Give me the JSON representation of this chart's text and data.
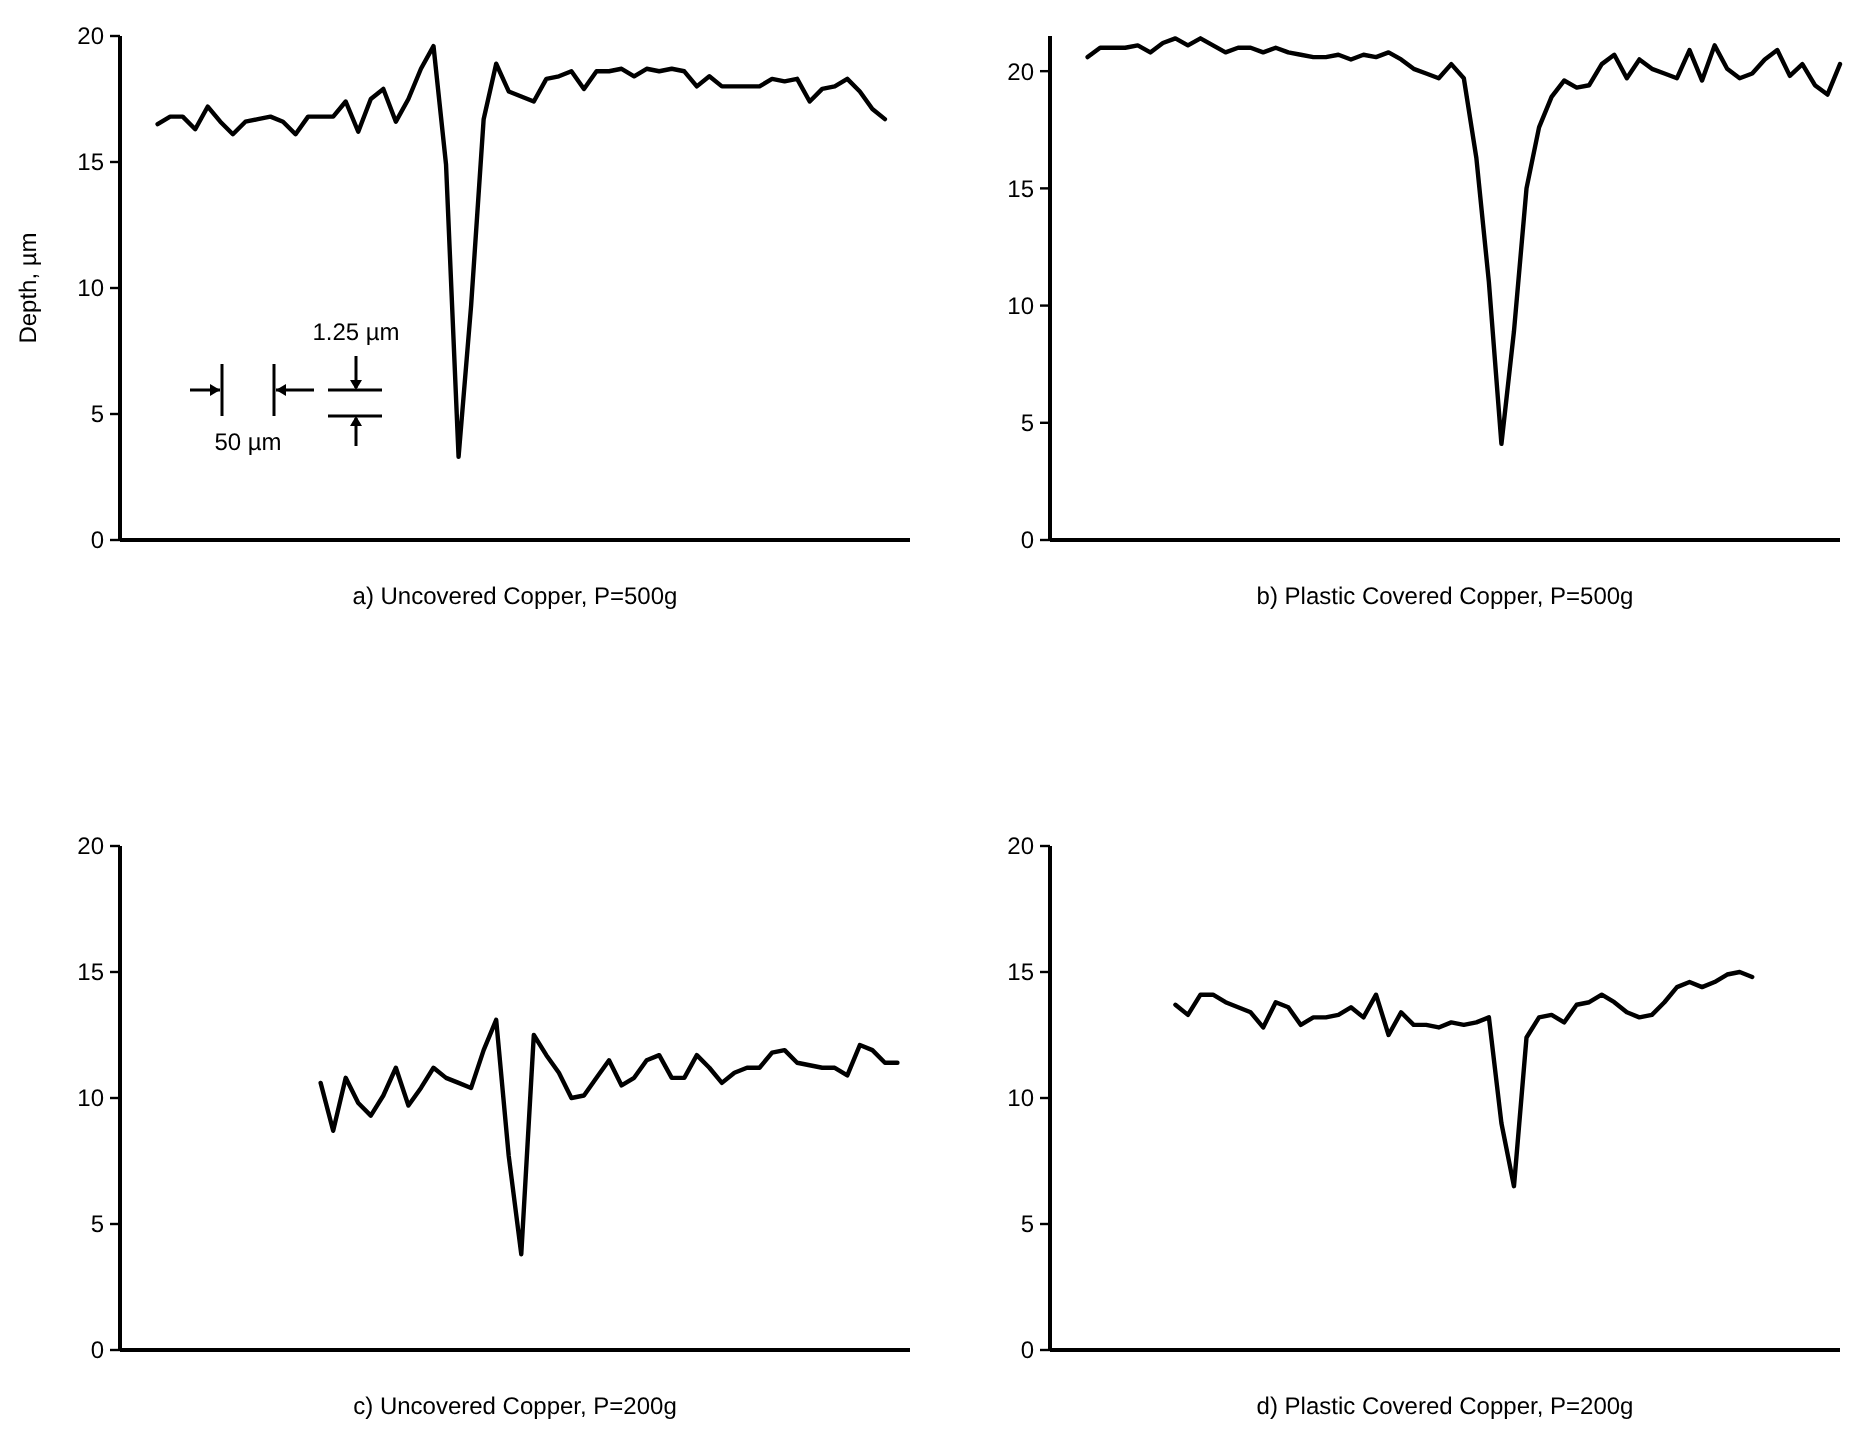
{
  "chart_data": [
    {
      "type": "line",
      "title": "a) Uncovered Copper, P=500g",
      "ylabel": "Depth, µm",
      "annotations": [
        "1.25 µm",
        "50 µm"
      ],
      "tick_labels": "y",
      "ylim": [
        0,
        20
      ],
      "yticks": [
        0,
        5,
        10,
        15,
        20
      ],
      "categories": [
        null,
        null,
        null,
        null,
        null,
        null,
        null,
        null,
        null,
        null,
        null,
        null,
        null,
        null,
        null,
        null,
        null,
        null,
        null,
        null,
        null,
        null,
        null,
        null,
        null,
        null,
        null,
        null,
        null,
        null,
        null,
        null,
        null,
        null,
        null,
        null,
        null,
        null,
        null,
        null,
        null,
        null,
        null,
        null,
        null,
        null,
        null,
        null,
        null,
        null,
        null,
        null,
        null,
        null,
        null,
        null,
        null,
        null,
        null,
        null,
        null,
        null,
        null,
        null
      ],
      "series": [
        {
          "color": "#000000",
          "values": [
            null,
            null,
            null,
            16.5,
            16.8,
            16.8,
            16.3,
            17.2,
            16.6,
            16.1,
            16.6,
            16.7,
            16.8,
            16.6,
            16.1,
            16.8,
            16.8,
            16.8,
            17.4,
            16.2,
            17.5,
            17.9,
            16.6,
            17.5,
            18.7,
            19.6,
            14.9,
            3.3,
            9.3,
            16.7,
            18.9,
            17.8,
            17.6,
            17.4,
            18.3,
            18.4,
            18.6,
            17.9,
            18.6,
            18.6,
            18.7,
            18.4,
            18.7,
            18.6,
            18.7,
            18.6,
            18.0,
            18.4,
            18.0,
            18.0,
            18.0,
            18.0,
            18.3,
            18.2,
            18.3,
            17.4,
            17.9,
            18.0,
            18.3,
            17.8,
            17.1,
            16.7,
            null,
            null
          ]
        }
      ]
    },
    {
      "type": "line",
      "title": "b) Plastic Covered Copper, P=500g",
      "tick_labels": "y",
      "ylim": [
        0,
        21.5
      ],
      "yticks": [
        0,
        5,
        10,
        15,
        20
      ],
      "categories": [
        null,
        null,
        null,
        null,
        null,
        null,
        null,
        null,
        null,
        null,
        null,
        null,
        null,
        null,
        null,
        null,
        null,
        null,
        null,
        null,
        null,
        null,
        null,
        null,
        null,
        null,
        null,
        null,
        null,
        null,
        null,
        null,
        null,
        null,
        null,
        null,
        null,
        null,
        null,
        null,
        null,
        null,
        null,
        null,
        null,
        null,
        null,
        null,
        null,
        null,
        null,
        null,
        null,
        null,
        null,
        null,
        null,
        null,
        null,
        null,
        null,
        null,
        null,
        null
      ],
      "series": [
        {
          "color": "#000000",
          "values": [
            null,
            null,
            null,
            20.6,
            21.0,
            21.0,
            21.0,
            21.1,
            20.8,
            21.2,
            21.4,
            21.1,
            21.4,
            21.1,
            20.8,
            21.0,
            21.0,
            20.8,
            21.0,
            20.8,
            20.7,
            20.6,
            20.6,
            20.7,
            20.5,
            20.7,
            20.6,
            20.8,
            20.5,
            20.1,
            19.9,
            19.7,
            20.3,
            19.7,
            16.3,
            11.0,
            4.1,
            8.9,
            15.0,
            17.6,
            18.9,
            19.6,
            19.3,
            19.4,
            20.3,
            20.7,
            19.7,
            20.5,
            20.1,
            19.9,
            19.7,
            20.9,
            19.6,
            21.1,
            20.1,
            19.7,
            19.9,
            20.5,
            20.9,
            19.8,
            20.3,
            19.4,
            19.0,
            20.3
          ]
        }
      ]
    },
    {
      "type": "line",
      "title": "c) Uncovered Copper, P=200g",
      "tick_labels": "y",
      "ylim": [
        0,
        20
      ],
      "yticks": [
        0,
        5,
        10,
        15,
        20
      ],
      "categories": [
        null,
        null,
        null,
        null,
        null,
        null,
        null,
        null,
        null,
        null,
        null,
        null,
        null,
        null,
        null,
        null,
        null,
        null,
        null,
        null,
        null,
        null,
        null,
        null,
        null,
        null,
        null,
        null,
        null,
        null,
        null,
        null,
        null,
        null,
        null,
        null,
        null,
        null,
        null,
        null,
        null,
        null,
        null,
        null,
        null,
        null,
        null,
        null,
        null,
        null,
        null,
        null,
        null,
        null,
        null,
        null,
        null,
        null,
        null,
        null,
        null,
        null,
        null,
        null
      ],
      "series": [
        {
          "color": "#000000",
          "values": [
            null,
            null,
            null,
            null,
            null,
            null,
            null,
            null,
            null,
            null,
            null,
            null,
            null,
            null,
            null,
            null,
            10.6,
            8.7,
            10.8,
            9.8,
            9.3,
            10.1,
            11.2,
            9.7,
            10.4,
            11.2,
            10.8,
            10.6,
            10.4,
            11.9,
            13.1,
            7.7,
            3.8,
            12.5,
            11.7,
            11.0,
            10.0,
            10.1,
            10.8,
            11.5,
            10.5,
            10.8,
            11.5,
            11.7,
            10.8,
            10.8,
            11.7,
            11.2,
            10.6,
            11.0,
            11.2,
            11.2,
            11.8,
            11.9,
            11.4,
            11.3,
            11.2,
            11.2,
            10.9,
            12.1,
            11.9,
            11.4,
            11.4,
            null
          ]
        }
      ]
    },
    {
      "type": "line",
      "title": "d) Plastic Covered Copper, P=200g",
      "tick_labels": "y",
      "ylim": [
        0,
        20
      ],
      "yticks": [
        0,
        5,
        10,
        15,
        20
      ],
      "categories": [
        null,
        null,
        null,
        null,
        null,
        null,
        null,
        null,
        null,
        null,
        null,
        null,
        null,
        null,
        null,
        null,
        null,
        null,
        null,
        null,
        null,
        null,
        null,
        null,
        null,
        null,
        null,
        null,
        null,
        null,
        null,
        null,
        null,
        null,
        null,
        null,
        null,
        null,
        null,
        null,
        null,
        null,
        null,
        null,
        null,
        null,
        null,
        null,
        null,
        null,
        null,
        null,
        null,
        null,
        null,
        null,
        null,
        null,
        null,
        null,
        null,
        null,
        null,
        null
      ],
      "series": [
        {
          "color": "#000000",
          "values": [
            null,
            null,
            null,
            null,
            null,
            null,
            null,
            null,
            null,
            null,
            13.7,
            13.3,
            14.1,
            14.1,
            13.8,
            13.6,
            13.4,
            12.8,
            13.8,
            13.6,
            12.9,
            13.2,
            13.2,
            13.3,
            13.6,
            13.2,
            14.1,
            12.5,
            13.4,
            12.9,
            12.9,
            12.8,
            13.0,
            12.9,
            13.0,
            13.2,
            9.0,
            6.5,
            12.4,
            13.2,
            13.3,
            13.0,
            13.7,
            13.8,
            14.1,
            13.8,
            13.4,
            13.2,
            13.3,
            13.8,
            14.4,
            14.6,
            14.4,
            14.6,
            14.9,
            15.0,
            14.8,
            null,
            null,
            null,
            null,
            null,
            null,
            null
          ]
        }
      ]
    }
  ]
}
